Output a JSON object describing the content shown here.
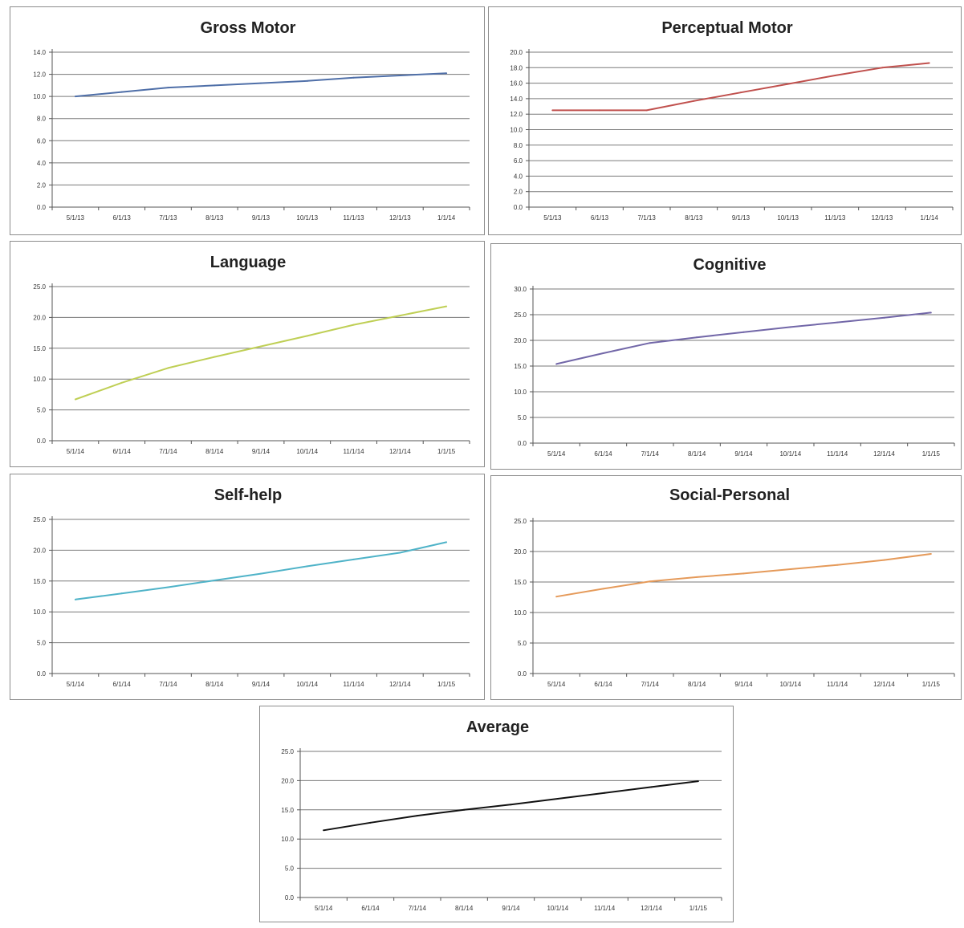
{
  "chart_data": [
    {
      "type": "line",
      "title": "Gross Motor",
      "x": [
        "5/1/13",
        "6/1/13",
        "7/1/13",
        "8/1/13",
        "9/1/13",
        "10/1/13",
        "11/1/13",
        "12/1/13",
        "1/1/14"
      ],
      "yticks": [
        "0.0",
        "2.0",
        "4.0",
        "6.0",
        "8.0",
        "10.0",
        "12.0",
        "14.0"
      ],
      "ylim": [
        0,
        14
      ],
      "series": [
        {
          "values": [
            10.0,
            10.4,
            10.8,
            11.0,
            11.2,
            11.4,
            11.7,
            11.9,
            12.1
          ]
        }
      ],
      "color": "#4f6fa8"
    },
    {
      "type": "line",
      "title": "Perceptual Motor",
      "x": [
        "5/1/13",
        "6/1/13",
        "7/1/13",
        "8/1/13",
        "9/1/13",
        "10/1/13",
        "11/1/13",
        "12/1/13",
        "1/1/14"
      ],
      "yticks": [
        "0.0",
        "2.0",
        "4.0",
        "6.0",
        "8.0",
        "10.0",
        "12.0",
        "14.0",
        "16.0",
        "18.0",
        "20.0"
      ],
      "ylim": [
        0,
        20
      ],
      "series": [
        {
          "values": [
            12.5,
            12.5,
            12.5,
            13.7,
            14.8,
            15.9,
            17.0,
            18.0,
            18.6
          ]
        }
      ],
      "color": "#c0504d"
    },
    {
      "type": "line",
      "title": "Language",
      "x": [
        "5/1/14",
        "6/1/14",
        "7/1/14",
        "8/1/14",
        "9/1/14",
        "10/1/14",
        "11/1/14",
        "12/1/14",
        "1/1/15"
      ],
      "yticks": [
        "0.0",
        "5.0",
        "10.0",
        "15.0",
        "20.0",
        "25.0"
      ],
      "ylim": [
        0,
        25
      ],
      "series": [
        {
          "values": [
            6.7,
            9.4,
            11.8,
            13.6,
            15.3,
            17.0,
            18.8,
            20.3,
            21.8
          ]
        }
      ],
      "color": "#bfcf55"
    },
    {
      "type": "line",
      "title": "Cognitive",
      "x": [
        "5/1/14",
        "6/1/14",
        "7/1/14",
        "8/1/14",
        "9/1/14",
        "10/1/14",
        "11/1/14",
        "12/1/14",
        "1/1/15"
      ],
      "yticks": [
        "0.0",
        "5.0",
        "10.0",
        "15.0",
        "20.0",
        "25.0",
        "30.0"
      ],
      "ylim": [
        0,
        30
      ],
      "series": [
        {
          "values": [
            15.4,
            17.5,
            19.5,
            20.6,
            21.6,
            22.6,
            23.5,
            24.4,
            25.4
          ]
        }
      ],
      "color": "#7267a8"
    },
    {
      "type": "line",
      "title": "Self-help",
      "x": [
        "5/1/14",
        "6/1/14",
        "7/1/14",
        "8/1/14",
        "9/1/14",
        "10/1/14",
        "11/1/14",
        "12/1/14",
        "1/1/15"
      ],
      "yticks": [
        "0.0",
        "5.0",
        "10.0",
        "15.0",
        "20.0",
        "25.0"
      ],
      "ylim": [
        0,
        25
      ],
      "series": [
        {
          "values": [
            12.0,
            13.0,
            14.0,
            15.1,
            16.2,
            17.4,
            18.5,
            19.6,
            21.3
          ]
        }
      ],
      "color": "#4fb3c8"
    },
    {
      "type": "line",
      "title": "Social-Personal",
      "x": [
        "5/1/14",
        "6/1/14",
        "7/1/14",
        "8/1/14",
        "9/1/14",
        "10/1/14",
        "11/1/14",
        "12/1/14",
        "1/1/15"
      ],
      "yticks": [
        "0.0",
        "5.0",
        "10.0",
        "15.0",
        "20.0",
        "25.0"
      ],
      "ylim": [
        0,
        25
      ],
      "series": [
        {
          "values": [
            12.6,
            13.9,
            15.1,
            15.8,
            16.4,
            17.1,
            17.8,
            18.6,
            19.6
          ]
        }
      ],
      "color": "#e59a5a"
    },
    {
      "type": "line",
      "title": "Average",
      "x": [
        "5/1/14",
        "6/1/14",
        "7/1/14",
        "8/1/14",
        "9/1/14",
        "10/1/14",
        "11/1/14",
        "12/1/14",
        "1/1/15"
      ],
      "yticks": [
        "0.0",
        "5.0",
        "10.0",
        "15.0",
        "20.0",
        "25.0"
      ],
      "ylim": [
        0,
        25
      ],
      "series": [
        {
          "values": [
            11.5,
            12.8,
            14.0,
            15.0,
            15.9,
            16.9,
            17.9,
            18.9,
            19.9
          ]
        }
      ],
      "color": "#111111"
    }
  ]
}
